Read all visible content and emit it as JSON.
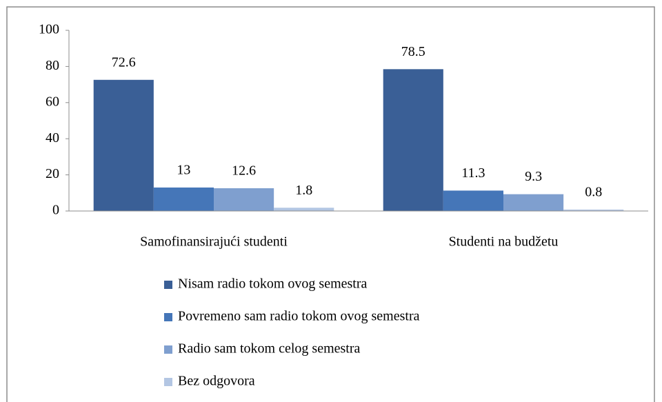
{
  "chart_data": {
    "type": "bar",
    "categories": [
      "Samofinansirajući studenti",
      "Studenti na budžetu"
    ],
    "series": [
      {
        "name": "Nisam radio tokom ovog semestra",
        "color": "#3a5f96",
        "values": [
          72.6,
          78.5
        ]
      },
      {
        "name": "Povremeno sam radio tokom ovog semestra",
        "color": "#4576b8",
        "values": [
          13,
          11.3
        ]
      },
      {
        "name": "Radio sam tokom celog semestra",
        "color": "#7f9fcf",
        "values": [
          12.6,
          9.3
        ]
      },
      {
        "name": "Bez odgovora",
        "color": "#b3c6e3",
        "values": [
          1.8,
          0.8
        ]
      }
    ],
    "ylim": [
      0,
      100
    ],
    "yticks": [
      0,
      20,
      40,
      60,
      80,
      100
    ],
    "grid": false,
    "legend": "bottom"
  }
}
